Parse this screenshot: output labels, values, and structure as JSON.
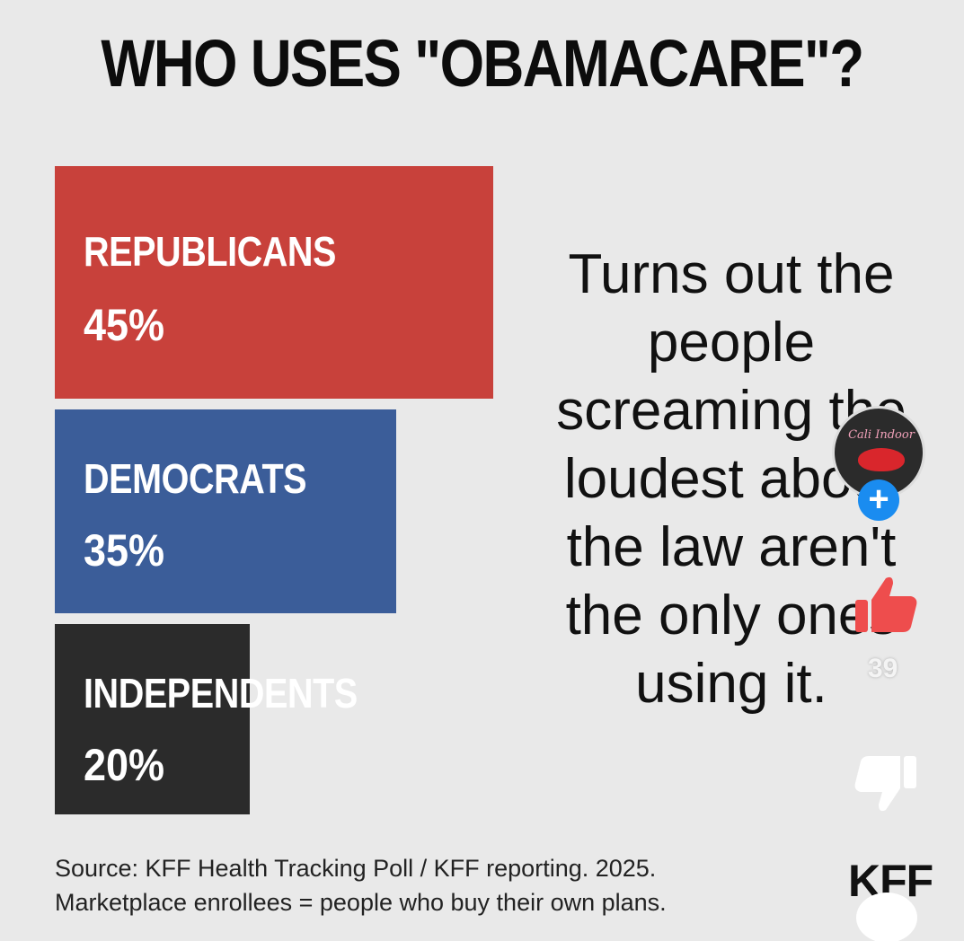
{
  "chart_data": {
    "type": "bar",
    "orientation": "horizontal",
    "title": "WHO USES \"OBAMACARE\"?",
    "categories": [
      "REPUBLICANS",
      "DEMOCRATS",
      "INDEPENDENTS"
    ],
    "values": [
      45,
      35,
      20
    ],
    "value_labels": [
      "45%",
      "35%",
      "20%"
    ],
    "colors": [
      "#c8413b",
      "#3b5d99",
      "#2b2b2b"
    ],
    "xlim": [
      0,
      45
    ],
    "annotation": "Turns out the people screaming the loudest about the law aren't the only ones using it.",
    "grid": false,
    "legend": "none"
  },
  "annotation_lines": [
    "Turns out the",
    "people",
    "screaming the",
    "loudest about",
    "the law aren't",
    "the only ones",
    "using it."
  ],
  "source": {
    "line1": "Source: KFF Health Tracking Poll / KFF reporting. 2025.",
    "line2": "Marketplace enrollees = people who buy their own plans."
  },
  "logo": "KFF",
  "overlay": {
    "avatar_icon": "profile-avatar",
    "avatar_text": "Cali Indoor",
    "follow_icon": "plus-icon",
    "follow_label": "+",
    "like_icon": "thumbs-up-icon",
    "like_count": "39",
    "dislike_icon": "thumbs-down-icon",
    "comment_icon": "speech-bubble-icon",
    "like_color": "#ee4d4d",
    "follow_color": "#1a8cf0"
  }
}
